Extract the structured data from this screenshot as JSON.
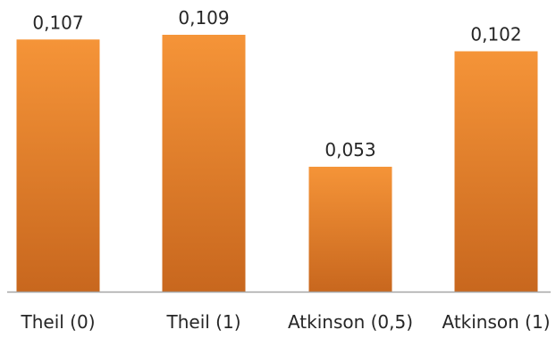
{
  "chart_data": {
    "type": "bar",
    "title": "",
    "xlabel": "",
    "ylabel": "",
    "categories": [
      "Theil (0)",
      "Theil (1)",
      "Atkinson (0,5)",
      "Atkinson (1)"
    ],
    "values": [
      0.107,
      0.109,
      0.053,
      0.102
    ],
    "value_labels": [
      "0,107",
      "0,109",
      "0,053",
      "0,102"
    ],
    "ylim": [
      0,
      0.109
    ],
    "grid": false,
    "legend": "none",
    "colors": {
      "bar_light": "#f59438",
      "bar_dark": "#c8671e",
      "axis": "#a6a6a6",
      "text": "#262626"
    }
  }
}
